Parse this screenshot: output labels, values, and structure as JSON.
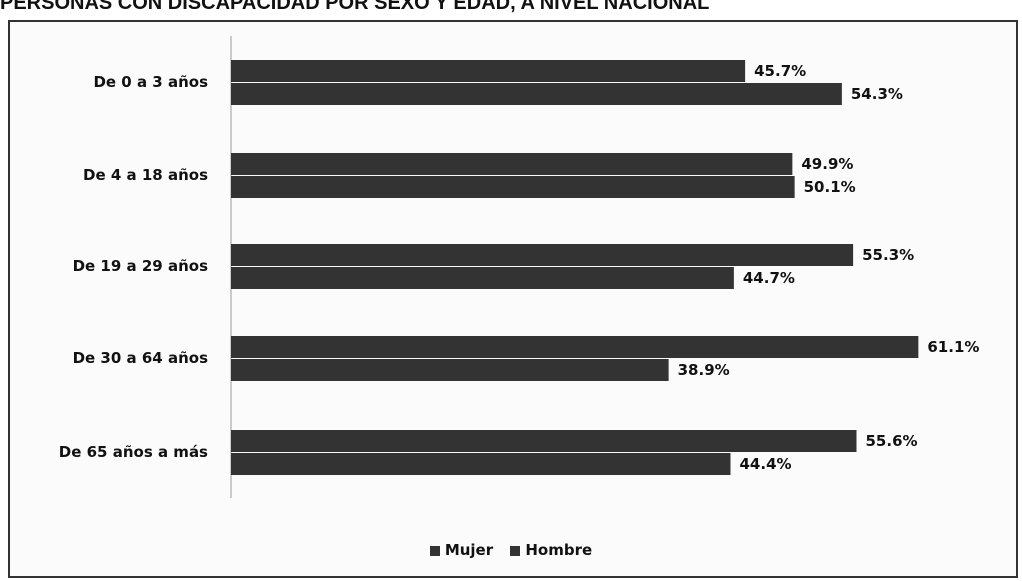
{
  "chart_data": {
    "type": "bar",
    "orientation": "horizontal",
    "title": "PERSONAS CON DISCAPACIDAD POR SEXO Y EDAD, A NIVEL NACIONAL",
    "categories": [
      "De 0 a 3 años",
      "De 4 a 18 años",
      "De 19 a 29 años",
      "De 30 a 64 años",
      "De 65 años a más"
    ],
    "series": [
      {
        "name": "Mujer",
        "values": [
          45.7,
          49.9,
          55.3,
          61.1,
          55.6
        ],
        "labels": [
          "45.7%",
          "49.9%",
          "55.3%",
          "61.1%",
          "55.6%"
        ],
        "color": "#333333"
      },
      {
        "name": "Hombre",
        "values": [
          54.3,
          50.1,
          44.7,
          38.9,
          44.4
        ],
        "labels": [
          "54.3%",
          "50.1%",
          "44.7%",
          "38.9%",
          "44.4%"
        ],
        "color": "#333333"
      }
    ],
    "xlim": [
      0,
      62
    ],
    "grid": false,
    "legend_position": "bottom"
  }
}
